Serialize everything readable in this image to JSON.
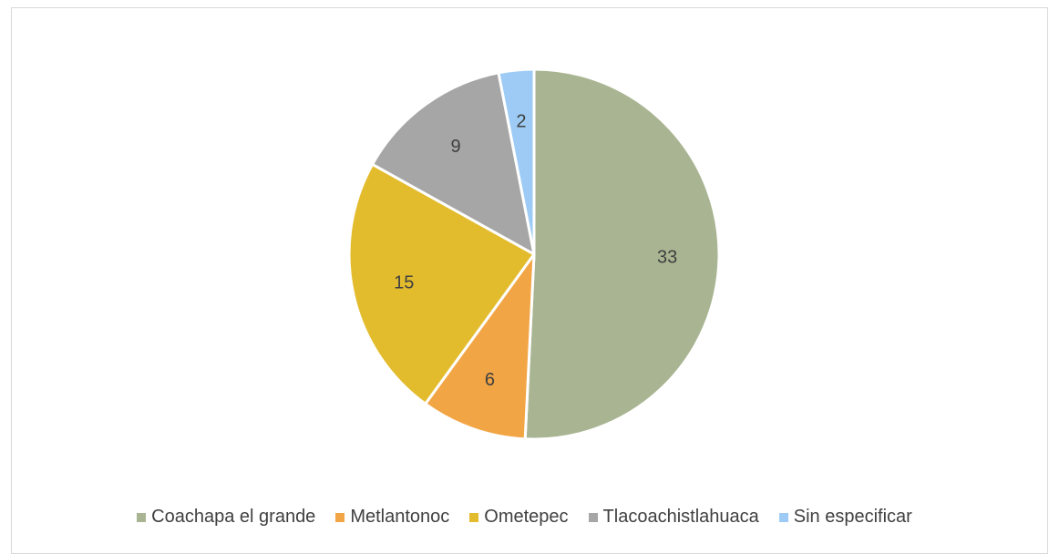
{
  "chart_data": {
    "type": "pie",
    "categories": [
      "Coachapa el grande",
      "Metlantonoc",
      "Ometepec",
      "Tlacoachistlahuaca",
      "Sin especificar"
    ],
    "values": [
      33,
      6,
      15,
      9,
      2
    ],
    "colors": [
      "#a9b592",
      "#f2a545",
      "#e3bc2d",
      "#a6a6a6",
      "#9dcbf5"
    ],
    "start_angle_deg": 0,
    "direction": "clockwise",
    "show_data_labels": true,
    "legend_position": "bottom"
  }
}
